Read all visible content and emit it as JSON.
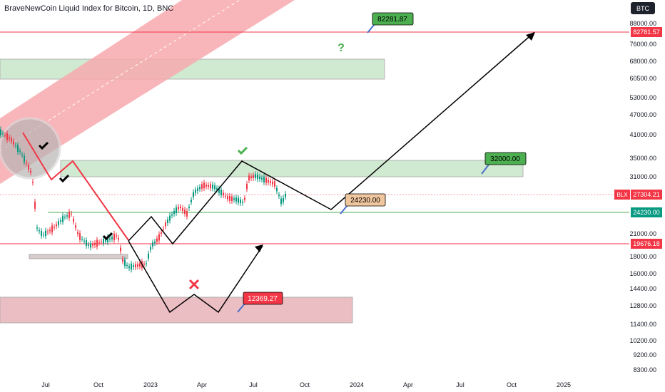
{
  "header": {
    "title": "BraveNewCoin Liquid Index for Bitcoin, 1D, BNC",
    "symbol_button": "BTC"
  },
  "chart_data": {
    "type": "candlestick",
    "title": "BraveNewCoin Liquid Index for Bitcoin, 1D, BNC",
    "y_scale": "log",
    "ylim": [
      8000,
      100000
    ],
    "x_ticks": [
      "Jul",
      "Oct",
      "2023",
      "Apr",
      "Jul",
      "Oct",
      "2024",
      "Apr",
      "Jul",
      "Oct",
      "2025"
    ],
    "y_ticks": [
      88000,
      76000,
      68000,
      60500,
      53000,
      47000,
      41000,
      35000,
      31000,
      21000,
      18000,
      16000,
      14400,
      12800,
      11400,
      10200,
      9200,
      8300
    ],
    "price_labels": [
      {
        "label": "82781.57",
        "value": 82781.57,
        "color": "#f23645"
      },
      {
        "label": "BLX",
        "value": 27304.21,
        "text": "27304.21",
        "color": "#f23645"
      },
      {
        "label": "24230.00",
        "value": 24230.0,
        "color": "#089981"
      },
      {
        "label": "19676.18",
        "value": 19676.18,
        "color": "#f23645"
      }
    ],
    "horizontal_lines": [
      {
        "value": 82781.57,
        "color": "#f23645"
      },
      {
        "value": 24230.0,
        "color": "#4caf50"
      },
      {
        "value": 19676.18,
        "color": "#f23645"
      },
      {
        "value": 27304.21,
        "color": "#f7a1a6",
        "dashed": true
      }
    ],
    "annotations": [
      {
        "text": "82281.87",
        "type": "target",
        "color": "#4caf50"
      },
      {
        "text": "32000.00",
        "type": "target",
        "color": "#4caf50"
      },
      {
        "text": "24230.00",
        "type": "support",
        "color": "#f0c69e"
      },
      {
        "text": "12369.27",
        "type": "target",
        "color": "#f23645"
      },
      {
        "text": "?",
        "type": "mark",
        "color": "#4caf50"
      }
    ]
  },
  "colors": {
    "up": "#089981",
    "down": "#f23645",
    "green_zone": "#c8e6c9",
    "red_zone": "#f2c4c8"
  }
}
